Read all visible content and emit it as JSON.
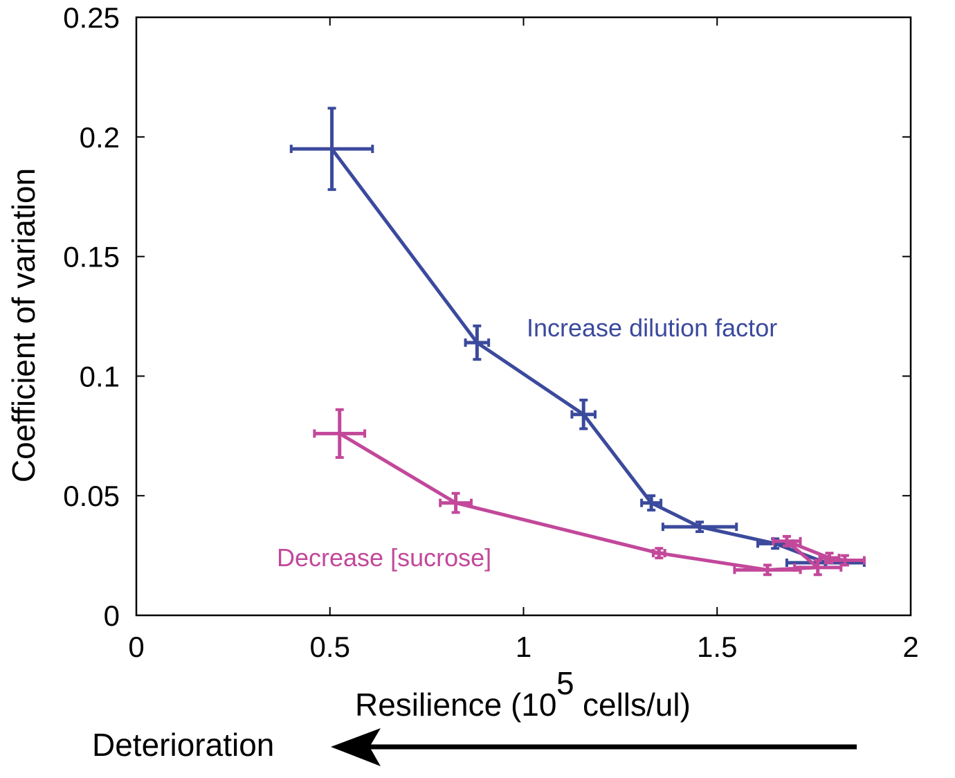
{
  "chart_data": {
    "type": "line",
    "xlabel": "Resilience (10",
    "xlabel_exponent": "5",
    "xlabel_suffix": "cells/ul)",
    "ylabel": "Coefficient of variation",
    "xlim": [
      0,
      2
    ],
    "ylim": [
      0,
      0.25
    ],
    "xticks": [
      "0",
      "0.5",
      "1",
      "1.5",
      "2"
    ],
    "yticks": [
      "0",
      "0.05",
      "0.1",
      "0.15",
      "0.2",
      "0.25"
    ],
    "grid": false,
    "series": [
      {
        "name": "Increase dilution factor",
        "color": "#3b4a9c",
        "points": [
          {
            "x": 0.505,
            "y": 0.195,
            "xerr": 0.105,
            "yerr": 0.017
          },
          {
            "x": 0.88,
            "y": 0.114,
            "xerr": 0.03,
            "yerr": 0.007
          },
          {
            "x": 1.155,
            "y": 0.084,
            "xerr": 0.03,
            "yerr": 0.006
          },
          {
            "x": 1.33,
            "y": 0.047,
            "xerr": 0.025,
            "yerr": 0.003
          },
          {
            "x": 1.455,
            "y": 0.037,
            "xerr": 0.095,
            "yerr": 0.002
          },
          {
            "x": 1.65,
            "y": 0.03,
            "xerr": 0.045,
            "yerr": 0.002
          },
          {
            "x": 1.78,
            "y": 0.022,
            "xerr": 0.1,
            "yerr": 0.002
          }
        ]
      },
      {
        "name": "Decrease [sucrose]",
        "color": "#c2489a",
        "points": [
          {
            "x": 0.525,
            "y": 0.076,
            "xerr": 0.065,
            "yerr": 0.01
          },
          {
            "x": 0.825,
            "y": 0.047,
            "xerr": 0.04,
            "yerr": 0.004
          },
          {
            "x": 1.35,
            "y": 0.026,
            "xerr": 0.015,
            "yerr": 0.002
          },
          {
            "x": 1.63,
            "y": 0.019,
            "xerr": 0.085,
            "yerr": 0.002
          },
          {
            "x": 1.76,
            "y": 0.02,
            "xerr": 0.06,
            "yerr": 0.003
          },
          {
            "x": 1.68,
            "y": 0.031,
            "xerr": 0.035,
            "yerr": 0.002
          },
          {
            "x": 1.79,
            "y": 0.024,
            "xerr": 0.025,
            "yerr": 0.002
          },
          {
            "x": 1.83,
            "y": 0.023,
            "xerr": 0.05,
            "yerr": 0.002
          }
        ]
      }
    ],
    "annotations": {
      "increase": "Increase dilution factor",
      "decrease": "Decrease [sucrose]",
      "deterioration": "Deterioration"
    }
  }
}
